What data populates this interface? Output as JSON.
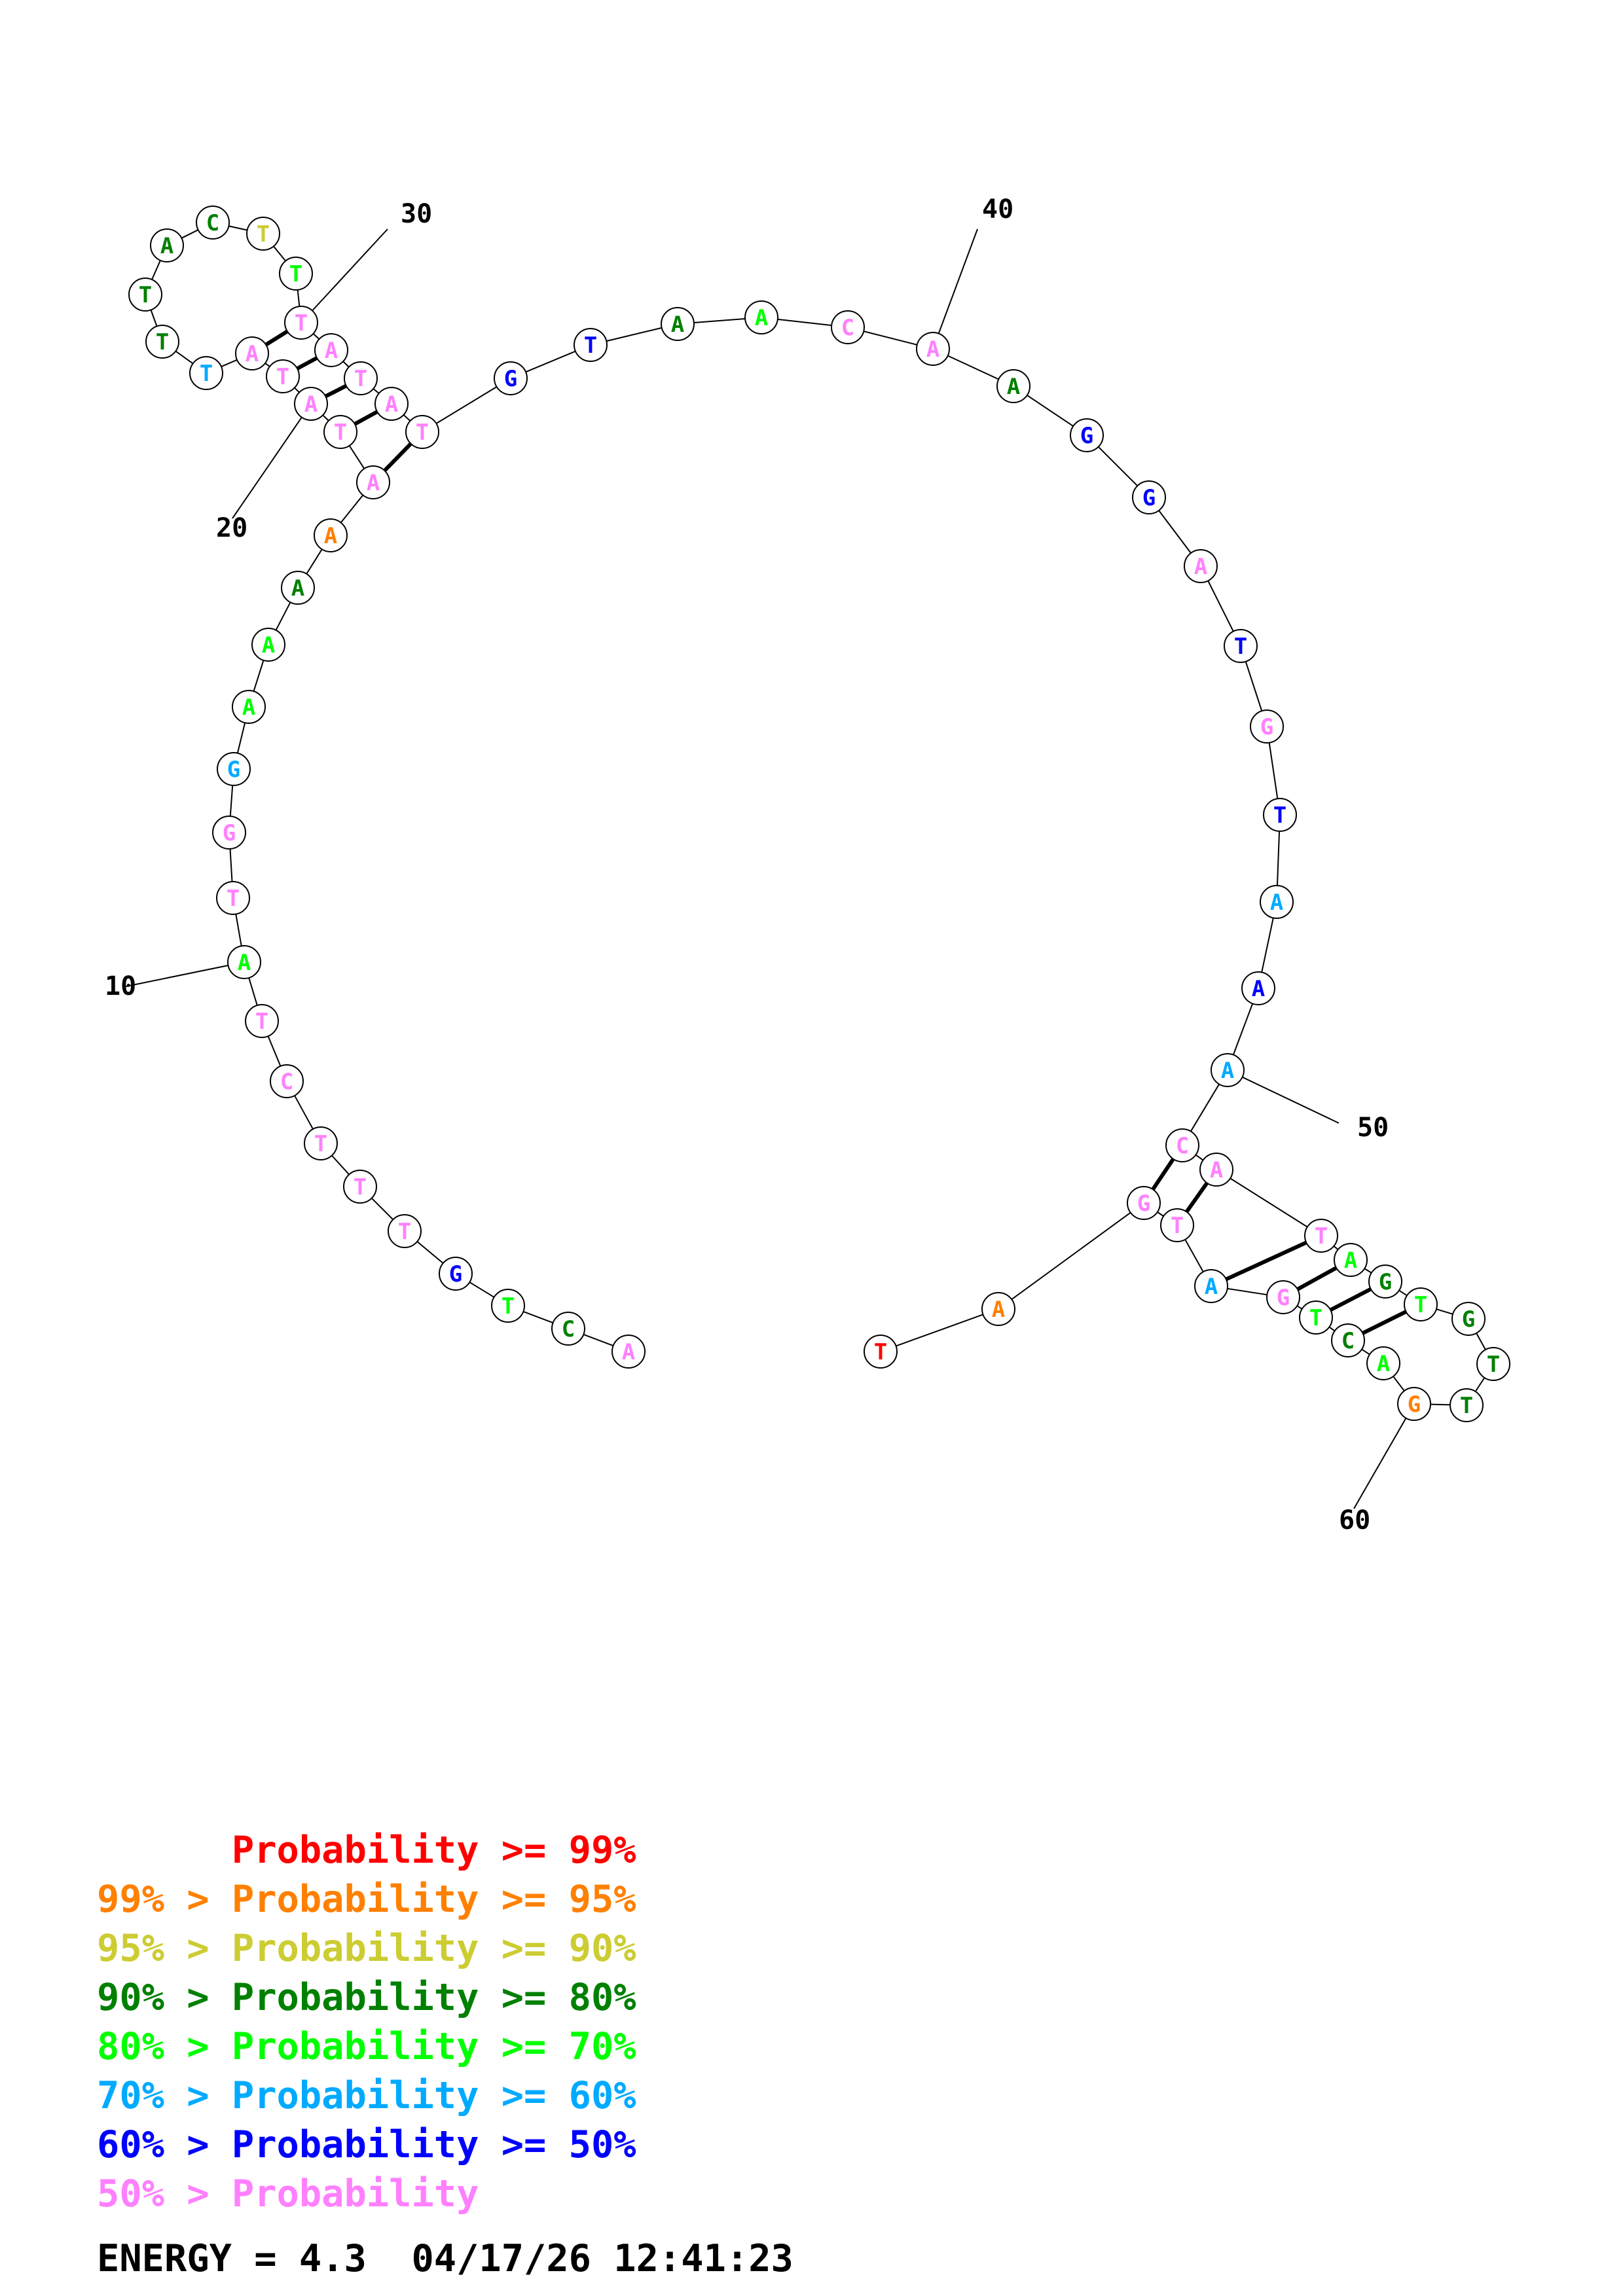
{
  "diagram": {
    "nucleotides": [
      {
        "base": "A",
        "color": "#ff80ff"
      },
      {
        "base": "C",
        "color": "#008000"
      },
      {
        "base": "T",
        "color": "#00ff00"
      },
      {
        "base": "G",
        "color": "#0000ff"
      },
      {
        "base": "T",
        "color": "#ff80ff"
      },
      {
        "base": "T",
        "color": "#ff80ff"
      },
      {
        "base": "T",
        "color": "#ff80ff"
      },
      {
        "base": "C",
        "color": "#ff80ff"
      },
      {
        "base": "T",
        "color": "#ff80ff"
      },
      {
        "base": "A",
        "color": "#00ff00"
      },
      {
        "base": "T",
        "color": "#ff80ff"
      },
      {
        "base": "G",
        "color": "#ff80ff"
      },
      {
        "base": "G",
        "color": "#00aaff"
      },
      {
        "base": "A",
        "color": "#00ff00"
      },
      {
        "base": "A",
        "color": "#00ff00"
      },
      {
        "base": "A",
        "color": "#008000"
      },
      {
        "base": "A",
        "color": "#ff8000"
      },
      {
        "base": "A",
        "color": "#ff80ff"
      },
      {
        "base": "T",
        "color": "#ff80ff"
      },
      {
        "base": "A",
        "color": "#ff80ff"
      },
      {
        "base": "T",
        "color": "#ff80ff"
      },
      {
        "base": "A",
        "color": "#ff80ff"
      },
      {
        "base": "T",
        "color": "#00aaff"
      },
      {
        "base": "T",
        "color": "#008000"
      },
      {
        "base": "T",
        "color": "#008000"
      },
      {
        "base": "A",
        "color": "#008000"
      },
      {
        "base": "C",
        "color": "#008000"
      },
      {
        "base": "T",
        "color": "#cccc33"
      },
      {
        "base": "T",
        "color": "#00ff00"
      },
      {
        "base": "T",
        "color": "#ff80ff"
      },
      {
        "base": "A",
        "color": "#ff80ff"
      },
      {
        "base": "T",
        "color": "#ff80ff"
      },
      {
        "base": "A",
        "color": "#ff80ff"
      },
      {
        "base": "T",
        "color": "#ff80ff"
      },
      {
        "base": "G",
        "color": "#0000ff"
      },
      {
        "base": "T",
        "color": "#0000ff"
      },
      {
        "base": "A",
        "color": "#008000"
      },
      {
        "base": "A",
        "color": "#00ff00"
      },
      {
        "base": "C",
        "color": "#ff80ff"
      },
      {
        "base": "A",
        "color": "#ff80ff"
      },
      {
        "base": "A",
        "color": "#008000"
      },
      {
        "base": "G",
        "color": "#0000ff"
      },
      {
        "base": "G",
        "color": "#0000ff"
      },
      {
        "base": "A",
        "color": "#ff80ff"
      },
      {
        "base": "T",
        "color": "#0000ff"
      },
      {
        "base": "G",
        "color": "#ff80ff"
      },
      {
        "base": "T",
        "color": "#0000ff"
      },
      {
        "base": "A",
        "color": "#00aaff"
      },
      {
        "base": "A",
        "color": "#0000ff"
      },
      {
        "base": "A",
        "color": "#00aaff"
      },
      {
        "base": "C",
        "color": "#ff80ff"
      },
      {
        "base": "A",
        "color": "#ff80ff"
      },
      {
        "base": "T",
        "color": "#ff80ff"
      },
      {
        "base": "A",
        "color": "#00ff00"
      },
      {
        "base": "G",
        "color": "#008000"
      },
      {
        "base": "T",
        "color": "#00ff00"
      },
      {
        "base": "G",
        "color": "#008000"
      },
      {
        "base": "T",
        "color": "#008000"
      },
      {
        "base": "T",
        "color": "#008000"
      },
      {
        "base": "G",
        "color": "#ff8000"
      },
      {
        "base": "A",
        "color": "#00ff00"
      },
      {
        "base": "C",
        "color": "#008000"
      },
      {
        "base": "T",
        "color": "#00ff00"
      },
      {
        "base": "G",
        "color": "#ff80ff"
      },
      {
        "base": "A",
        "color": "#00aaff"
      },
      {
        "base": "T",
        "color": "#ff80ff"
      },
      {
        "base": "G",
        "color": "#ff80ff"
      },
      {
        "base": "A",
        "color": "#ff8000"
      },
      {
        "base": "T",
        "color": "#ff0000"
      }
    ],
    "pairs": [
      [
        18,
        34
      ],
      [
        19,
        33
      ],
      [
        20,
        32
      ],
      [
        21,
        31
      ],
      [
        22,
        30
      ],
      [
        51,
        67
      ],
      [
        52,
        66
      ],
      [
        53,
        65
      ],
      [
        54,
        64
      ],
      [
        55,
        63
      ],
      [
        56,
        62
      ]
    ],
    "position_labels": [
      {
        "text": "10",
        "index": 10
      },
      {
        "text": "20",
        "index": 20
      },
      {
        "text": "30",
        "index": 30
      },
      {
        "text": "40",
        "index": 40
      },
      {
        "text": "50",
        "index": 50
      },
      {
        "text": "60",
        "index": 60
      }
    ]
  },
  "legend": [
    {
      "prefix": "    ",
      "label": "Probability >= 99%",
      "color": "#ff0000"
    },
    {
      "prefix": "99% > ",
      "label": "Probability >= 95%",
      "color": "#ff8000"
    },
    {
      "prefix": "95% > ",
      "label": "Probability >= 90%",
      "color": "#cccc33"
    },
    {
      "prefix": "90% > ",
      "label": "Probability >= 80%",
      "color": "#008000"
    },
    {
      "prefix": "80% > ",
      "label": "Probability >= 70%",
      "color": "#00ff00"
    },
    {
      "prefix": "70% > ",
      "label": "Probability >= 60%",
      "color": "#00aaff"
    },
    {
      "prefix": "60% > ",
      "label": "Probability >= 50%",
      "color": "#0000ff"
    },
    {
      "prefix": "50% > ",
      "label": "Probability",
      "color": "#ff80ff"
    }
  ],
  "footer": {
    "energy": "ENERGY = 4.3",
    "timestamp": "04/17/26 12:41:23"
  }
}
